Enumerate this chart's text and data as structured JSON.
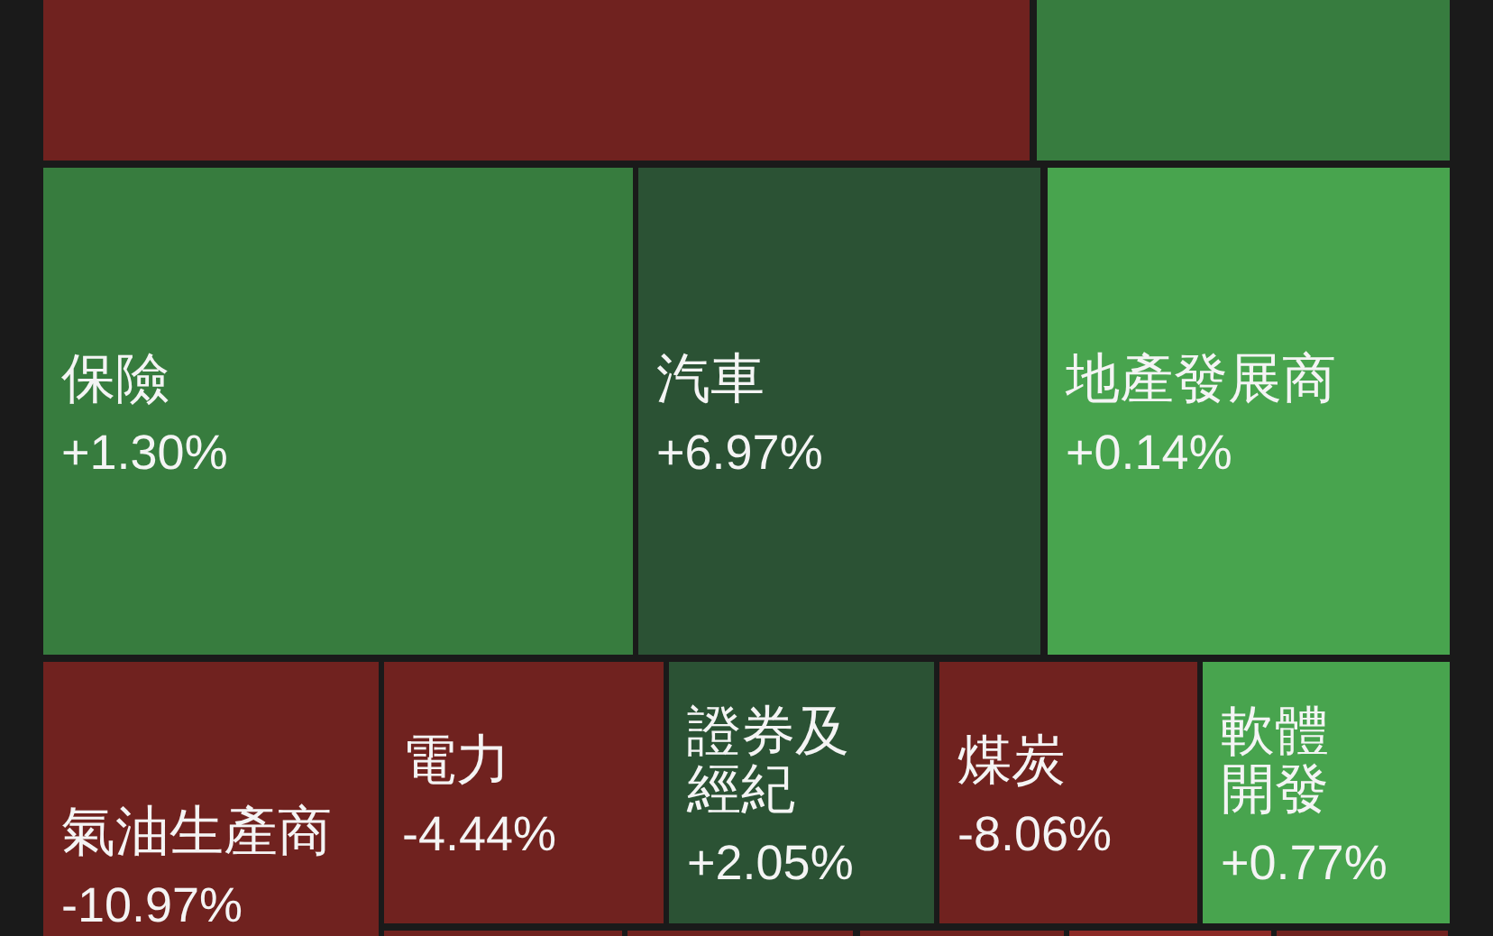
{
  "chart_data": {
    "type": "other",
    "categories": [
      null,
      null,
      "保險",
      "汽車",
      "地產發展商",
      "氣油生產商",
      "電力",
      "證券及經紀",
      "煤炭",
      "軟體開發",
      null,
      null,
      null,
      null,
      null
    ],
    "values": [
      null,
      null,
      1.3,
      6.97,
      0.14,
      -10.97,
      -4.44,
      2.05,
      -8.06,
      0.77,
      null,
      null,
      null,
      null,
      null
    ],
    "value_labels": [
      null,
      null,
      "+1.30%",
      "+6.97%",
      "+0.14%",
      "-10.97%",
      "-4.44%",
      "+2.05%",
      "-8.06%",
      "+0.77%",
      null,
      null,
      null,
      null,
      null
    ],
    "colors": [
      "#70221f",
      "#377c3f",
      "#377c3e",
      "#2b5234",
      "#48a44e",
      "#70221f",
      "#70221f",
      "#2b5234",
      "#70221f",
      "#48a44e",
      "#70221f",
      "#70221f",
      "#70221f",
      "#8c2a26",
      "#70221f"
    ]
  }
}
